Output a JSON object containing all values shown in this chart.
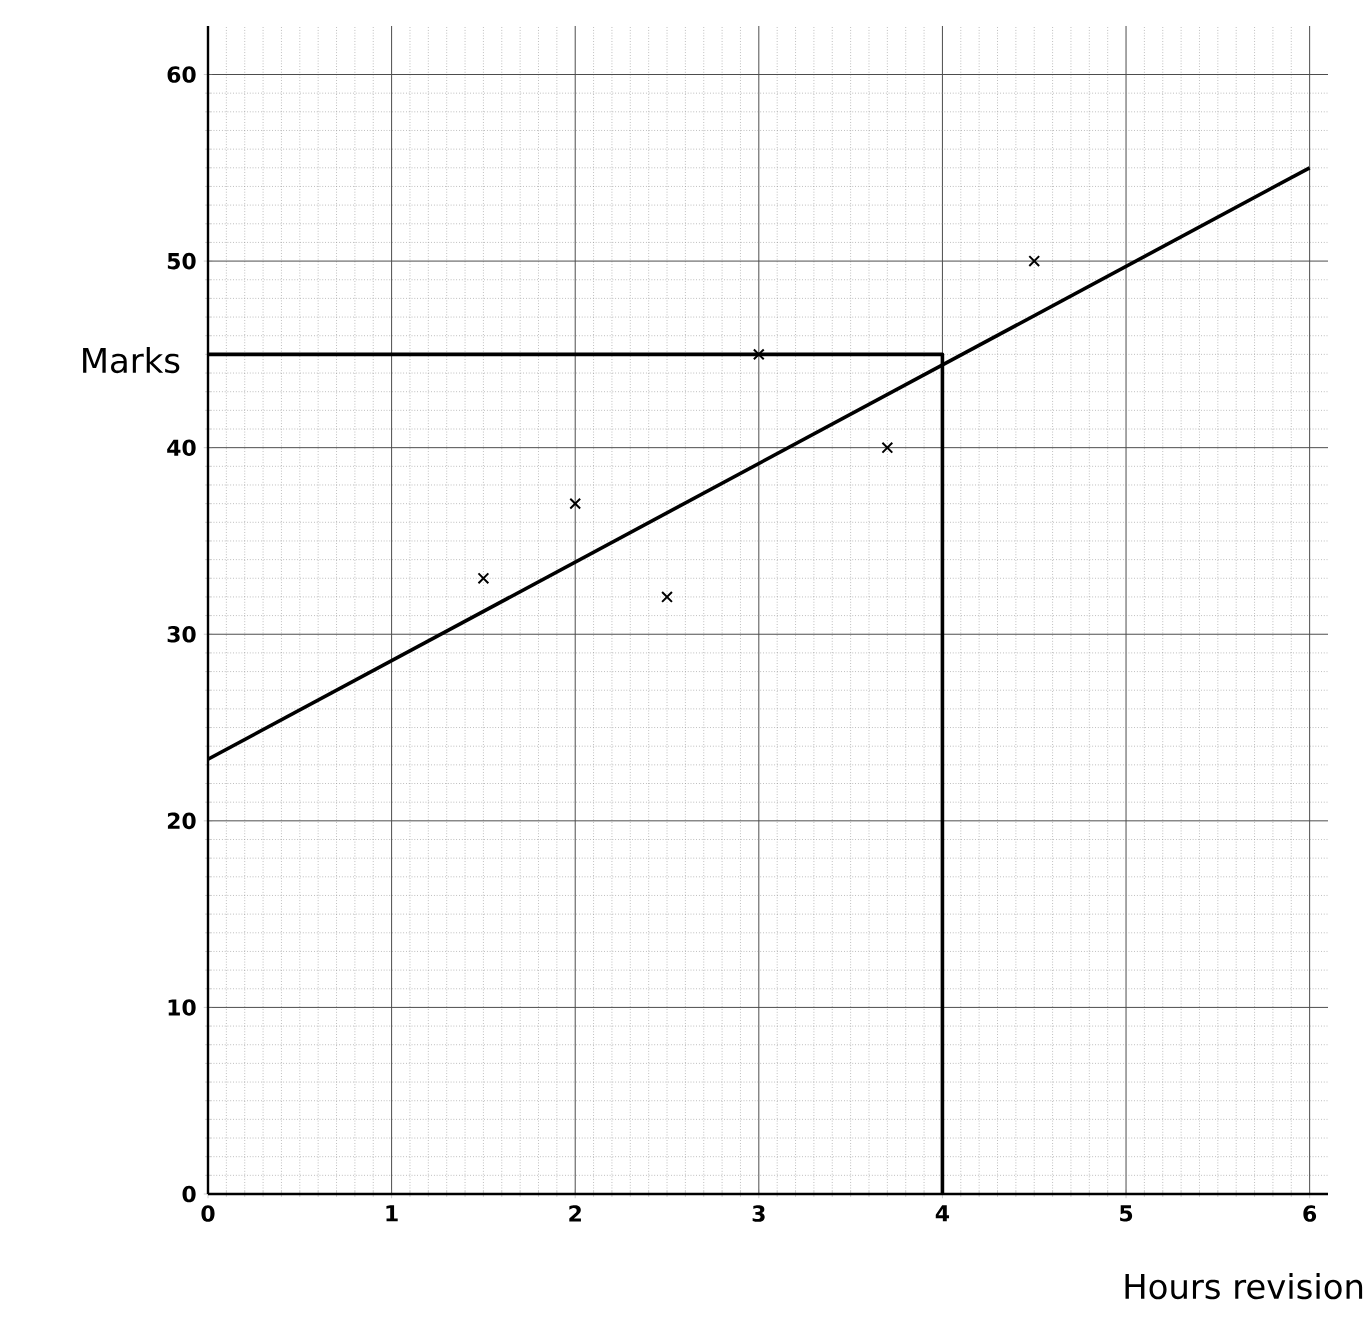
{
  "chart_data": {
    "type": "scatter",
    "xlabel": "Hours revision",
    "ylabel": "Marks",
    "xlim": [
      0,
      6.1
    ],
    "ylim": [
      0,
      62.6
    ],
    "xticks": [
      0,
      1,
      2,
      3,
      4,
      5,
      6
    ],
    "yticks": [
      0,
      10,
      20,
      30,
      40,
      50,
      60
    ],
    "grid": true,
    "series": [
      {
        "color": "#000000",
        "marker": "cross",
        "x": [
          1.5,
          2,
          2.5,
          3,
          3.7,
          4.5
        ],
        "values": [
          33,
          37,
          32,
          45,
          40,
          50
        ]
      },
      {
        "type": "line",
        "color": "#000000",
        "marker": "none",
        "x": [
          0,
          6
        ],
        "values": [
          23.3,
          55
        ]
      },
      {
        "type": "line",
        "color": "#000000",
        "marker": "none",
        "x": [
          0,
          4,
          4
        ],
        "values": [
          45,
          45,
          0
        ]
      }
    ]
  }
}
